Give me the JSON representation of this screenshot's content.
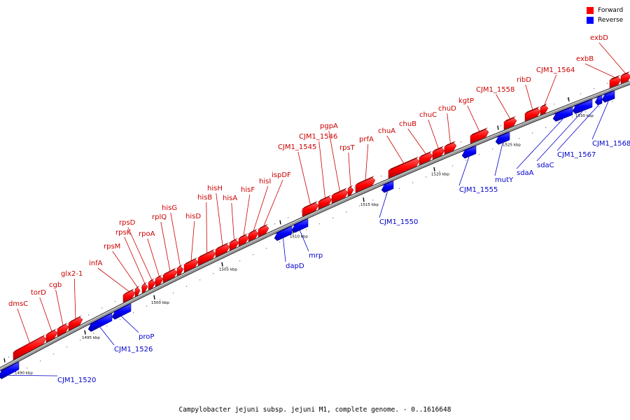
{
  "legend": {
    "forward_label": "Forward",
    "reverse_label": "Reverse",
    "forward_color": "#ff0000",
    "reverse_color": "#0000ff"
  },
  "caption": "Campylobacter jejuni subsp. jejuni M1, complete genome. - 0..1616648",
  "colors": {
    "forward_label": "#cc0000",
    "reverse_label": "#0000cc",
    "backbone": "#555555"
  },
  "ticks": [
    "1490 kbp",
    "1495 kbp",
    "1500 kbp",
    "1505 kbp",
    "1510 kbp",
    "1515 kbp",
    "1520 kbp",
    "1525 kbp",
    "1530 kbp"
  ],
  "forward_genes": [
    "dmsC",
    "torD",
    "cgb",
    "glx2-1",
    "infA",
    "rpsM",
    "rpsK",
    "rpsD",
    "rpoA",
    "rplQ",
    "hisG",
    "hisD",
    "hisB",
    "hisH",
    "hisA",
    "hisF",
    "hisI",
    "ispDF",
    "CJM1_1545",
    "CJM1_1546",
    "pgpA",
    "rpsT",
    "prfA",
    "chuA",
    "chuB",
    "chuC",
    "chuD",
    "kgtP",
    "CJM1_1558",
    "ribD",
    "CJM1_1564",
    "exbB",
    "exbD"
  ],
  "reverse_genes": [
    "CJM1_1520",
    "CJM1_1526",
    "proP",
    "dapD",
    "mrp",
    "CJM1_1550",
    "CJM1_1555",
    "mutY",
    "sdaA",
    "sdaC",
    "CJM1_1567",
    "CJM1_1568"
  ]
}
